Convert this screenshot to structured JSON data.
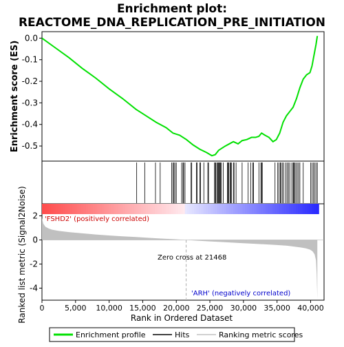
{
  "chart_data": {
    "type": "line",
    "title": "Enrichment plot:",
    "subtitle": "REACTOME_DNA_REPLICATION_PRE_INITIATION",
    "es_panel": {
      "ylabel": "Enrichment score (ES)",
      "ylim": [
        -0.57,
        0.03
      ],
      "yticks": [
        0.0,
        -0.1,
        -0.2,
        -0.3,
        -0.4,
        -0.5
      ],
      "ytick_labels": [
        "0.0",
        "-0.1",
        "-0.2",
        "-0.3",
        "-0.4",
        "-0.5"
      ],
      "grid": false,
      "line_color": "#00e000",
      "x": [
        0,
        2000,
        4000,
        6000,
        8000,
        10000,
        12000,
        14000,
        15500,
        17000,
        18500,
        19500,
        20500,
        21500,
        22500,
        23500,
        24500,
        25300,
        25800,
        26300,
        26800,
        27300,
        27900,
        28500,
        29200,
        29800,
        30500,
        31200,
        31800,
        32300,
        32700,
        33200,
        33800,
        34400,
        34900,
        35400,
        35900,
        36400,
        36900,
        37400,
        37900,
        38400,
        38900,
        39400,
        39900,
        40200,
        40500,
        40800,
        41000
      ],
      "es": [
        0.0,
        -0.045,
        -0.09,
        -0.14,
        -0.185,
        -0.235,
        -0.28,
        -0.33,
        -0.36,
        -0.39,
        -0.415,
        -0.44,
        -0.45,
        -0.47,
        -0.495,
        -0.515,
        -0.53,
        -0.545,
        -0.54,
        -0.52,
        -0.51,
        -0.5,
        -0.49,
        -0.48,
        -0.49,
        -0.475,
        -0.47,
        -0.46,
        -0.46,
        -0.455,
        -0.44,
        -0.45,
        -0.46,
        -0.48,
        -0.47,
        -0.44,
        -0.39,
        -0.36,
        -0.34,
        -0.32,
        -0.28,
        -0.23,
        -0.19,
        -0.17,
        -0.16,
        -0.13,
        -0.08,
        -0.03,
        0.01
      ]
    },
    "hits_panel": {
      "hit_ranks": [
        14100,
        15300,
        16900,
        17600,
        19300,
        19500,
        19650,
        19800,
        20000,
        20800,
        21000,
        21100,
        21300,
        22200,
        22300,
        23000,
        23100,
        23500,
        23600,
        24100,
        24700,
        24800,
        25700,
        25800,
        25900,
        26100,
        26200,
        26300,
        26400,
        26500,
        26600,
        26700,
        27000,
        27600,
        27700,
        27800,
        28000,
        28100,
        28200,
        28500,
        28600,
        28900,
        29800,
        30700,
        31100,
        31400,
        31500,
        32300,
        32600,
        32700,
        32800,
        34700,
        35100,
        35300,
        35500,
        35600,
        35800,
        36000,
        36300,
        36500,
        36700,
        36900,
        37200,
        37400,
        37500,
        37600,
        37800,
        38000,
        38200,
        38400,
        38900,
        40000,
        40200,
        40400,
        40600,
        40800,
        41000
      ]
    },
    "metric_panel": {
      "ylabel": "Ranked list metric (Signal2Noise)",
      "ylim": [
        -5,
        3
      ],
      "yticks": [
        2,
        0,
        -2,
        -4
      ],
      "ytick_labels": [
        "2",
        "0",
        "-2",
        "-4"
      ],
      "fill_color": "#c0c0c0",
      "pos_label": "'FSHD2' (positively correlated)",
      "neg_label": "'ARH' (negatively correlated)",
      "zero_cross_label": "Zero cross at 21468",
      "zero_cross": 21468,
      "x": [
        0,
        200,
        500,
        1000,
        1500,
        2500,
        4000,
        6000,
        8000,
        10000,
        12000,
        14000,
        16000,
        18000,
        20000,
        21468,
        23000,
        25000,
        27000,
        29000,
        31000,
        33000,
        35000,
        36500,
        37500,
        38500,
        39300,
        39900,
        40300,
        40600,
        40800,
        40900,
        41000
      ],
      "values": [
        1.8,
        1.35,
        1.1,
        0.95,
        0.85,
        0.75,
        0.65,
        0.55,
        0.45,
        0.37,
        0.3,
        0.24,
        0.17,
        0.11,
        0.05,
        0.0,
        -0.06,
        -0.12,
        -0.18,
        -0.24,
        -0.3,
        -0.36,
        -0.42,
        -0.48,
        -0.55,
        -0.62,
        -0.7,
        -0.8,
        -0.95,
        -1.2,
        -1.7,
        -2.8,
        -4.9
      ]
    },
    "x_axis": {
      "xlabel": "Rank in Ordered Dataset",
      "xlim": [
        0,
        42000
      ],
      "xticks": [
        0,
        5000,
        10000,
        15000,
        20000,
        25000,
        30000,
        35000,
        40000
      ],
      "xtick_labels": [
        "0",
        "5,000",
        "10,000",
        "15,000",
        "20,000",
        "25,000",
        "30,000",
        "35,000",
        "40,000"
      ],
      "n_genes": 41200
    },
    "legend": {
      "placement": "bottom",
      "entries": [
        {
          "label": "Enrichment profile",
          "color": "#00e000"
        },
        {
          "label": "Hits",
          "color": "#000000"
        },
        {
          "label": "Ranking metric scores",
          "color": "#c0c0c0"
        }
      ]
    }
  }
}
